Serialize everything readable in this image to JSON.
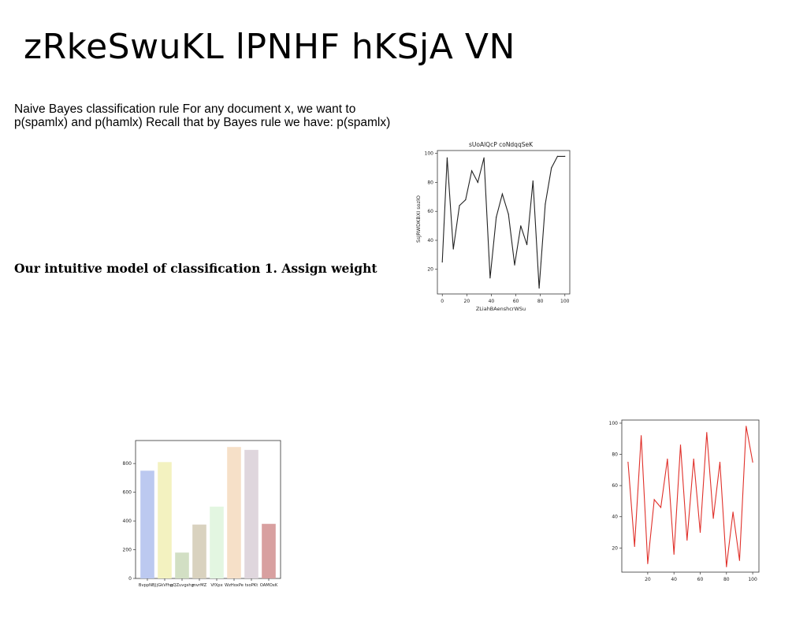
{
  "slide": {
    "title": "zRkeSwuKL lPNHF hKSjA VN",
    "paragraph_line1": "Naive Bayes classification rule For any document x, we want to",
    "paragraph_line2": "p(spamlx) and p(hamlx) Recall that by Bayes rule we have: p(spamlx)",
    "bold_line": "Our intuitive model of classification 1. Assign weight"
  },
  "chart_data": [
    {
      "type": "line",
      "title": "sUoAlQcP coNdqqSeK",
      "xlabel": "ZLiahBAenshcrWSu",
      "ylabel": "SsJRWDKBXI sozlO",
      "color": "#222222",
      "x": [
        0,
        4,
        9,
        14,
        19,
        24,
        29,
        34,
        39,
        44,
        49,
        54,
        59,
        64,
        69,
        74,
        79,
        84,
        89,
        94,
        100
      ],
      "y": [
        25,
        97,
        34,
        64,
        68,
        88,
        80,
        97,
        14,
        56,
        72,
        58,
        23,
        50,
        37,
        81,
        7,
        65,
        90,
        98,
        98
      ],
      "xticks": [
        0,
        20,
        40,
        60,
        80,
        100
      ],
      "yticks": [
        20,
        40,
        60,
        80,
        100
      ],
      "xlim": [
        -4,
        104
      ],
      "ylim": [
        3,
        102
      ]
    },
    {
      "type": "bar",
      "categories": [
        "BvppNBJ",
        "jGkVfhq",
        "pQZuvgshg",
        "mvrMZ",
        "VfXpx",
        "WzHoxPe",
        "tsoPKt",
        "OAMOxK"
      ],
      "values": [
        750,
        810,
        180,
        375,
        500,
        915,
        895,
        380
      ],
      "colors": [
        "#bcc9f0",
        "#f3f2c0",
        "#d2dfc4",
        "#d9d2bf",
        "#e3f6e1",
        "#f6e0c8",
        "#dfd6dd",
        "#d8a0a0"
      ],
      "yticks": [
        0,
        200,
        400,
        600,
        800
      ],
      "ylim": [
        0,
        960
      ]
    },
    {
      "type": "line",
      "color": "#e0302a",
      "x": [
        5,
        10,
        15,
        20,
        25,
        30,
        35,
        40,
        45,
        50,
        55,
        60,
        65,
        70,
        75,
        80,
        85,
        90,
        95,
        100
      ],
      "y": [
        75,
        21,
        92,
        10,
        51,
        46,
        77,
        16,
        86,
        25,
        77,
        30,
        94,
        39,
        75,
        8,
        43,
        12,
        98,
        75
      ],
      "xticks": [
        20,
        40,
        60,
        80,
        100
      ],
      "yticks": [
        20,
        40,
        60,
        80,
        100
      ],
      "xlim": [
        0.25,
        104.75
      ],
      "ylim": [
        4.5,
        102
      ]
    }
  ]
}
